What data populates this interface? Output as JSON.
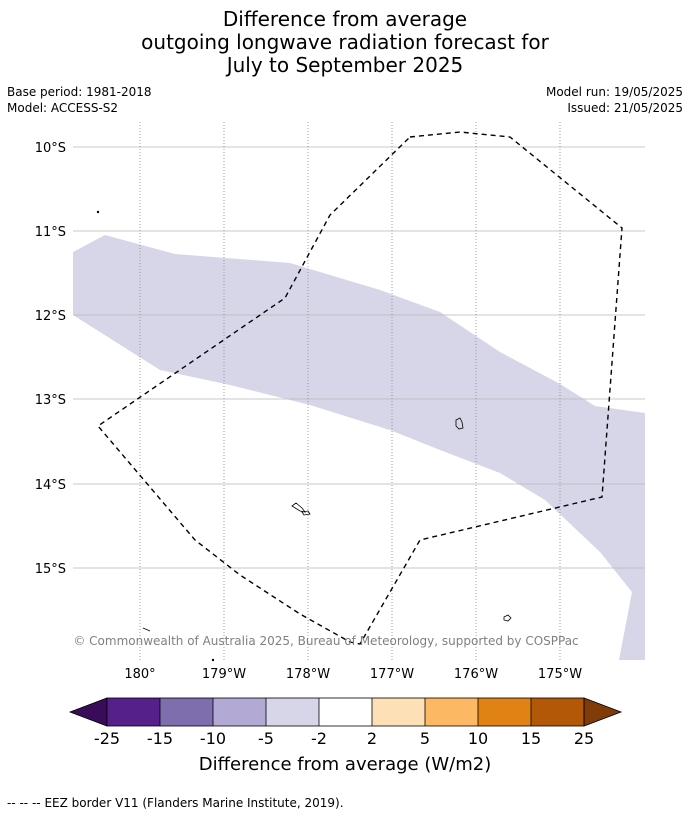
{
  "title": {
    "line1": "Difference from average",
    "line2": "outgoing longwave radiation forecast for",
    "line3": "July to September 2025"
  },
  "meta": {
    "base_period": "Base period: 1981-2018",
    "model": "Model: ACCESS-S2",
    "model_run": "Model run: 19/05/2025",
    "issued": "Issued: 21/05/2025"
  },
  "map": {
    "lat_labels": [
      "10°S",
      "11°S",
      "12°S",
      "13°S",
      "14°S",
      "15°S"
    ],
    "lon_labels": [
      "180°",
      "179°W",
      "178°W",
      "177°W",
      "176°W",
      "175°W"
    ],
    "copyright": "© Commonwealth of Australia 2025, Bureau of Meteorology, supported by COSPPac",
    "anomaly_category": "-5 to -2",
    "anomaly_color": "#d6d6e8",
    "eez_line_style": "dashed black"
  },
  "colorbar": {
    "title": "Difference from average (W/m2)",
    "boundaries": [
      "-25",
      "-15",
      "-10",
      "-5",
      "-2",
      "2",
      "5",
      "10",
      "15",
      "25"
    ],
    "colors": [
      "#56208a",
      "#7f6ead",
      "#b2aad4",
      "#d6d6e8",
      "#ffffff",
      "#fee0b6",
      "#fdb863",
      "#e08214",
      "#b35806"
    ],
    "under_color": "#3a0b5a",
    "over_color": "#7f3b08"
  },
  "footer": {
    "legend_symbol": "--  --  --",
    "legend_text": "EEZ border V11 (Flanders Marine Institute, 2019)."
  }
}
